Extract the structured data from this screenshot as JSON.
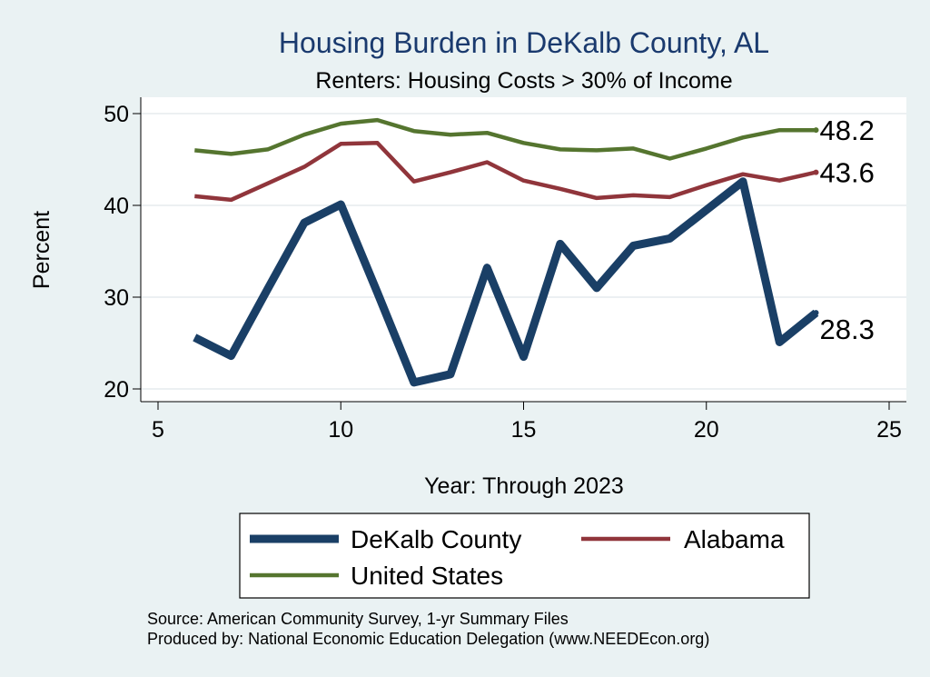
{
  "chart_data": {
    "type": "line",
    "title": "Housing Burden in DeKalb County, AL",
    "subtitle": "Renters: Housing Costs > 30% of Income",
    "xlabel": "Year: Through 2023",
    "ylabel": "Percent",
    "xlim": [
      5,
      25
    ],
    "ylim": [
      19,
      51
    ],
    "x_ticks": [
      5,
      10,
      15,
      20,
      25
    ],
    "y_ticks": [
      20,
      30,
      40,
      50
    ],
    "grid": true,
    "legend_position": "bottom",
    "x": [
      6,
      7,
      8,
      9,
      10,
      11,
      12,
      13,
      14,
      15,
      16,
      17,
      18,
      19,
      20,
      21,
      22,
      23
    ],
    "series": [
      {
        "name": "DeKalb County",
        "color": "#1a3f66",
        "values": [
          25.6,
          23.6,
          30.9,
          38.1,
          40.1,
          30.5,
          20.7,
          21.6,
          33.2,
          23.5,
          35.8,
          31.0,
          35.6,
          36.4,
          39.5,
          42.6,
          25.1,
          28.3
        ],
        "end_label": "28.3"
      },
      {
        "name": "Alabama",
        "color": "#90353b",
        "values": [
          41.0,
          40.6,
          42.4,
          44.2,
          46.7,
          46.8,
          42.6,
          43.6,
          44.7,
          42.7,
          41.8,
          40.8,
          41.1,
          40.9,
          42.2,
          43.4,
          42.7,
          43.6
        ],
        "end_label": "43.6"
      },
      {
        "name": "United States",
        "color": "#55752f",
        "values": [
          46.0,
          45.6,
          46.1,
          47.7,
          48.9,
          49.3,
          48.1,
          47.7,
          47.9,
          46.8,
          46.1,
          46.0,
          46.2,
          45.1,
          46.2,
          47.4,
          48.2,
          48.2
        ],
        "end_label": "48.2"
      }
    ],
    "source_lines": [
      "Source: American Community Survey, 1-yr Summary Files",
      "Produced by: National Economic Education Delegation (www.NEEDEcon.org)"
    ]
  }
}
